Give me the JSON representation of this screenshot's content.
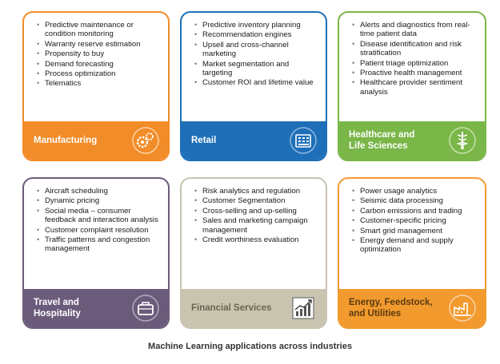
{
  "cards": [
    {
      "id": "manufacturing",
      "title": "Manufacturing",
      "color": "#f28c28",
      "items": [
        "Predictive maintenance or condition monitoring",
        "Warranty reserve estimation",
        "Propensity to buy",
        "Demand forecasting",
        "Process optimization",
        "Telematics"
      ],
      "icon": "gears-icon"
    },
    {
      "id": "retail",
      "title": "Retail",
      "color": "#1e6fb8",
      "items": [
        "Predictive inventory planning",
        "Recommendation engines",
        "Upsell and cross-channel marketing",
        "Market segmentation and targeting",
        "Customer ROI and lifetime value"
      ],
      "icon": "cash-register-icon"
    },
    {
      "id": "healthcare",
      "title": [
        "Healthcare and",
        "Life Sciences"
      ],
      "color": "#7ab648",
      "items": [
        "Alerts and diagnostics from real-time patient data",
        "Disease identification and risk stratification",
        "Patient triage optimization",
        "Proactive health management",
        "Healthcare provider sentiment analysis"
      ],
      "icon": "caduceus-icon"
    },
    {
      "id": "travel",
      "title": [
        "Travel and",
        "Hospitality"
      ],
      "color": "#6b5b7b",
      "items": [
        "Aircraft scheduling",
        "Dynamic pricing",
        "Social media – consumer feedback and interaction analysis",
        "Customer complaint resolution",
        "Traffic patterns and congestion management"
      ],
      "icon": "briefcase-icon"
    },
    {
      "id": "financial",
      "title": "Financial Services",
      "color": "#c9c4b0",
      "items": [
        "Risk analytics and regulation",
        "Customer Segmentation",
        "Cross-selling and up-selling",
        "Sales and marketing campaign management",
        "Credit worthiness evaluation"
      ],
      "icon": "growth-chart-icon"
    },
    {
      "id": "energy",
      "title": [
        "Energy, Feedstock,",
        "and Utilities"
      ],
      "color": "#f29a2e",
      "items": [
        "Power usage analytics",
        "Seismic data processing",
        "Carbon emissions and trading",
        "Customer-specific pricing",
        "Smart grid management",
        "Energy demand and supply optimization"
      ],
      "icon": "factory-icon"
    }
  ],
  "caption": "Machine Learning applications across industries"
}
